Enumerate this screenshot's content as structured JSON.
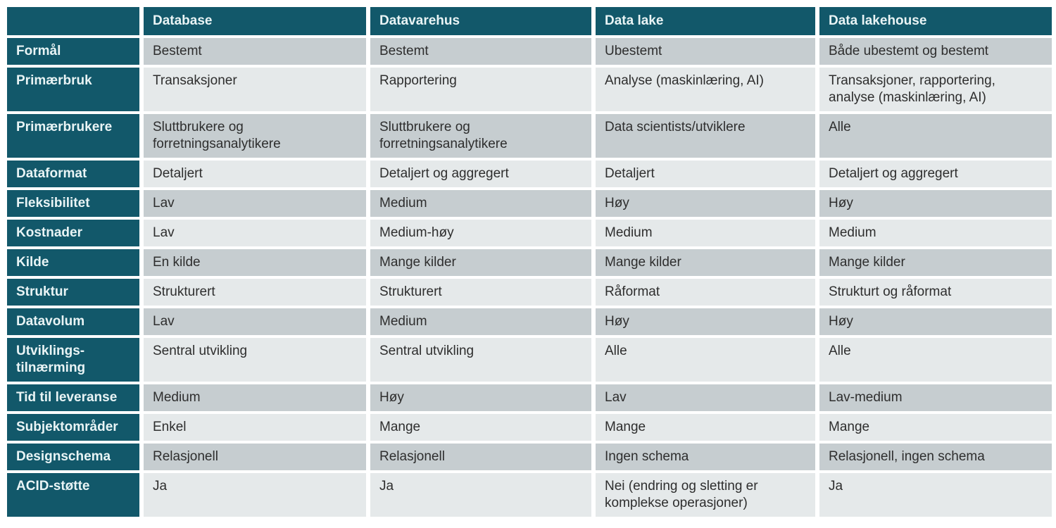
{
  "colors": {
    "header_teal": "#12586a",
    "header_text": "#e9f4f5",
    "row_dark": "#c6cdd0",
    "row_light": "#e5e9ea",
    "cell_text": "#2e2e2e",
    "background": "#ffffff"
  },
  "chart_data": {
    "type": "table",
    "title": "",
    "legend_position": "none",
    "columns": [
      "",
      "Database",
      "Datavarehus",
      "Data lake",
      "Data lakehouse"
    ],
    "rows": [
      {
        "label": "Formål",
        "values": [
          "Bestemt",
          "Bestemt",
          "Ubestemt",
          "Både ubestemt og bestemt"
        ]
      },
      {
        "label": "Primærbruk",
        "values": [
          "Transaksjoner",
          "Rapportering",
          "Analyse (maskinlæring, AI)",
          "Transaksjoner, rapportering, analyse (maskinlæring, AI)"
        ]
      },
      {
        "label": "Primærbrukere",
        "values": [
          "Sluttbrukere og forretningsanalytikere",
          "Sluttbrukere og forretningsanalytikere",
          "Data scientists/utviklere",
          "Alle"
        ]
      },
      {
        "label": "Dataformat",
        "values": [
          "Detaljert",
          "Detaljert og aggregert",
          "Detaljert",
          "Detaljert og aggregert"
        ]
      },
      {
        "label": "Fleksibilitet",
        "values": [
          "Lav",
          "Medium",
          "Høy",
          "Høy"
        ]
      },
      {
        "label": "Kostnader",
        "values": [
          "Lav",
          "Medium-høy",
          "Medium",
          "Medium"
        ]
      },
      {
        "label": "Kilde",
        "values": [
          "En kilde",
          "Mange kilder",
          "Mange kilder",
          "Mange kilder"
        ]
      },
      {
        "label": "Struktur",
        "values": [
          "Strukturert",
          "Strukturert",
          "Råformat",
          "Strukturt og råformat"
        ]
      },
      {
        "label": "Datavolum",
        "values": [
          "Lav",
          "Medium",
          "Høy",
          "Høy"
        ]
      },
      {
        "label": "Utviklings-tilnærming",
        "values": [
          "Sentral utvikling",
          "Sentral utvikling",
          "Alle",
          "Alle"
        ]
      },
      {
        "label": "Tid til leveranse",
        "values": [
          "Medium",
          "Høy",
          "Lav",
          "Lav-medium"
        ]
      },
      {
        "label": "Subjektområder",
        "values": [
          "Enkel",
          "Mange",
          "Mange",
          "Mange"
        ]
      },
      {
        "label": "Designschema",
        "values": [
          "Relasjonell",
          "Relasjonell",
          "Ingen schema",
          "Relasjonell, ingen schema"
        ]
      },
      {
        "label": "ACID-støtte",
        "values": [
          "Ja",
          "Ja",
          "Nei (endring og sletting er komplekse operasjoner)",
          "Ja"
        ]
      }
    ]
  }
}
